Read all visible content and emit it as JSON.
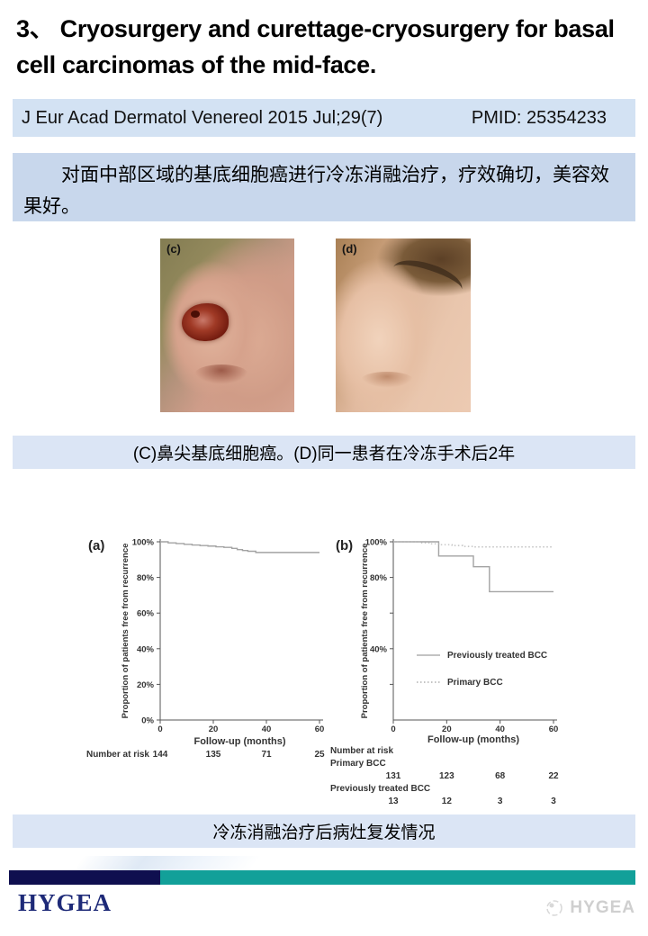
{
  "page": {
    "title": "3、 Cryosurgery and curettage-cryosurgery for basal cell carcinomas of the mid-face."
  },
  "citation": {
    "journal": "J Eur Acad Dermatol Venereol 2015 Jul;29(7)",
    "pmid": "PMID: 25354233"
  },
  "summary": {
    "text_cn": "对面中部区域的基底细胞癌进行冷冻消融治疗，疗效确切，美容效果好。"
  },
  "figures": {
    "photo_left_label": "(c)",
    "photo_right_label": "(d)",
    "photo_caption": "(C)鼻尖基底细胞癌。(D)同一患者在冷冻手术后2年",
    "chart_caption": "冷冻消融治疗后病灶复发情况"
  },
  "footer": {
    "logo_text": "HYGEA",
    "watermark_text": "HYGEA"
  },
  "colors": {
    "citation_bar_bg": "#d3e2f3",
    "summary_box_bg": "#c8d7ec",
    "caption_bar_bg": "#dbe5f5",
    "footer_navy": "#0f0f4f",
    "footer_teal": "#12a099",
    "logo_navy": "#1e2a78",
    "curve_solid": "#a3a3a3",
    "curve_dotted": "#b5b5b5",
    "axis": "#555555",
    "chart_text": "#333333"
  },
  "chart_data": [
    {
      "type": "line",
      "panel_label": "(a)",
      "xlabel": "Follow-up (months)",
      "ylabel": "Proportion of patients free from recurrence",
      "xlim": [
        0,
        60
      ],
      "ylim": [
        0,
        100
      ],
      "x_ticks": [
        0,
        20,
        40,
        60
      ],
      "y_ticks": [
        {
          "v": 100,
          "label": "100%"
        },
        {
          "v": 80,
          "label": "80%"
        },
        {
          "v": 60,
          "label": "60%"
        },
        {
          "v": 40,
          "label": "40%"
        },
        {
          "v": 20,
          "label": "20%"
        },
        {
          "v": 0,
          "label": "0%"
        }
      ],
      "grid": false,
      "legend": null,
      "series": [
        {
          "name": "",
          "line": "solid",
          "step_points": [
            [
              0,
              100
            ],
            [
              3,
              99.4
            ],
            [
              6,
              99
            ],
            [
              9,
              98.6
            ],
            [
              12,
              98.2
            ],
            [
              15,
              97.9
            ],
            [
              18,
              97.6
            ],
            [
              21,
              97.2
            ],
            [
              24,
              96.9
            ],
            [
              27,
              96.3
            ],
            [
              29,
              95.6
            ],
            [
              31,
              95.1
            ],
            [
              33,
              94.7
            ],
            [
              36,
              94
            ],
            [
              60,
              94
            ]
          ]
        }
      ],
      "number_at_risk": {
        "layout": "inline",
        "header": "Number at risk",
        "rows": [
          {
            "name": "",
            "values": [
              "144",
              "135",
              "71",
              "25"
            ]
          }
        ]
      }
    },
    {
      "type": "line",
      "panel_label": "(b)",
      "xlabel": "Follow-up (months)",
      "ylabel": "Proportion of patients free from recurrence",
      "xlim": [
        0,
        60
      ],
      "ylim": [
        0,
        100
      ],
      "x_ticks": [
        0,
        20,
        40,
        60
      ],
      "y_ticks": [
        {
          "v": 100,
          "label": "100%"
        },
        {
          "v": 80,
          "label": "80%"
        },
        {
          "v": 60,
          "label": ""
        },
        {
          "v": 40,
          "label": "40%"
        },
        {
          "v": 20,
          "label": ""
        }
      ],
      "grid": false,
      "legend": {
        "position": "inside-middle",
        "entries": [
          {
            "name": "Previously treated BCC",
            "line": "solid"
          },
          {
            "name": "Primary BCC",
            "line": "dotted"
          }
        ]
      },
      "series": [
        {
          "name": "Previously treated BCC",
          "line": "solid",
          "step_points": [
            [
              0,
              100
            ],
            [
              17,
              92
            ],
            [
              30,
              86
            ],
            [
              36,
              72
            ],
            [
              60,
              72
            ]
          ]
        },
        {
          "name": "Primary BCC",
          "line": "dotted",
          "step_points": [
            [
              0,
              100
            ],
            [
              10,
              99.4
            ],
            [
              14,
              98.9
            ],
            [
              18,
              98.4
            ],
            [
              22,
              97.9
            ],
            [
              26,
              97.4
            ],
            [
              30,
              97.1
            ],
            [
              60,
              97
            ]
          ]
        }
      ],
      "number_at_risk": {
        "layout": "stacked",
        "header": "Number at risk",
        "rows": [
          {
            "name": "Primary BCC",
            "values": [
              "131",
              "123",
              "68",
              "22"
            ]
          },
          {
            "name": "Previously treated BCC",
            "values": [
              "13",
              "12",
              "3",
              "3"
            ]
          }
        ]
      }
    }
  ]
}
